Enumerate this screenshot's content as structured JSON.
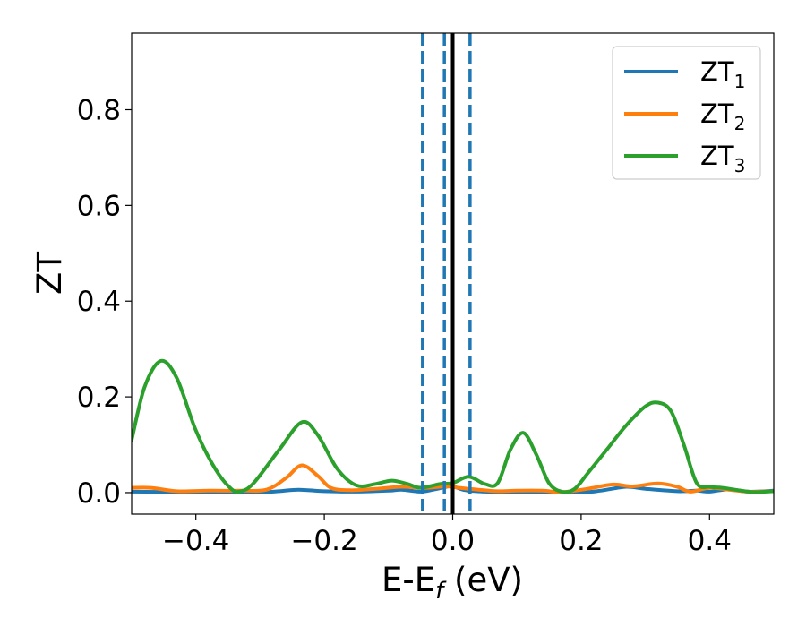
{
  "chart_data": {
    "type": "line",
    "xlabel": "E-E",
    "xlabel_sub": "f",
    "xlabel_unit": " (eV)",
    "ylabel": "ZT",
    "xlim": [
      -0.5,
      0.5
    ],
    "ylim": [
      -0.045,
      0.96
    ],
    "xticks": [
      -0.4,
      -0.2,
      0.0,
      0.2,
      0.4
    ],
    "xtick_labels": [
      "−0.4",
      "−0.2",
      "0.0",
      "0.2",
      "0.4"
    ],
    "yticks": [
      0.0,
      0.2,
      0.4,
      0.6,
      0.8
    ],
    "ytick_labels": [
      "0.0",
      "0.2",
      "0.4",
      "0.6",
      "0.8"
    ],
    "grid": false,
    "legend_position": "top-right",
    "vlines": [
      {
        "x": -0.047,
        "style": "dashed",
        "color": "#1f77b4"
      },
      {
        "x": -0.013,
        "style": "dashed",
        "color": "#1f77b4"
      },
      {
        "x": 0.0,
        "style": "solid",
        "color": "#000000"
      },
      {
        "x": 0.027,
        "style": "dashed",
        "color": "#1f77b4"
      }
    ],
    "series": [
      {
        "name": "ZT",
        "name_sub": "1",
        "color": "#1f77b4",
        "points": [
          [
            -0.5,
            0.002
          ],
          [
            -0.4,
            0.001
          ],
          [
            -0.3,
            0.001
          ],
          [
            -0.27,
            0.003
          ],
          [
            -0.24,
            0.006
          ],
          [
            -0.2,
            0.003
          ],
          [
            -0.15,
            0.002
          ],
          [
            -0.1,
            0.004
          ],
          [
            -0.08,
            0.006
          ],
          [
            -0.05,
            0.002
          ],
          [
            -0.03,
            0.006
          ],
          [
            -0.01,
            0.012
          ],
          [
            0.0,
            0.013
          ],
          [
            0.02,
            0.005
          ],
          [
            0.05,
            0.002
          ],
          [
            0.1,
            0.001
          ],
          [
            0.2,
            0.001
          ],
          [
            0.23,
            0.004
          ],
          [
            0.27,
            0.012
          ],
          [
            0.3,
            0.008
          ],
          [
            0.35,
            0.003
          ],
          [
            0.38,
            0.004
          ],
          [
            0.4,
            0.002
          ],
          [
            0.43,
            0.007
          ],
          [
            0.46,
            0.002
          ],
          [
            0.5,
            0.004
          ]
        ]
      },
      {
        "name": "ZT",
        "name_sub": "2",
        "color": "#ff7f0e",
        "points": [
          [
            -0.5,
            0.01
          ],
          [
            -0.47,
            0.01
          ],
          [
            -0.43,
            0.003
          ],
          [
            -0.38,
            0.004
          ],
          [
            -0.33,
            0.004
          ],
          [
            -0.29,
            0.006
          ],
          [
            -0.26,
            0.03
          ],
          [
            -0.235,
            0.057
          ],
          [
            -0.21,
            0.035
          ],
          [
            -0.19,
            0.01
          ],
          [
            -0.16,
            0.005
          ],
          [
            -0.12,
            0.008
          ],
          [
            -0.08,
            0.012
          ],
          [
            -0.04,
            0.01
          ],
          [
            -0.01,
            0.013
          ],
          [
            0.01,
            0.01
          ],
          [
            0.04,
            0.006
          ],
          [
            0.07,
            0.003
          ],
          [
            0.1,
            0.004
          ],
          [
            0.14,
            0.004
          ],
          [
            0.17,
            0.001
          ],
          [
            0.21,
            0.008
          ],
          [
            0.25,
            0.017
          ],
          [
            0.28,
            0.013
          ],
          [
            0.32,
            0.019
          ],
          [
            0.35,
            0.012
          ],
          [
            0.37,
            0.002
          ],
          [
            0.4,
            0.01
          ],
          [
            0.43,
            0.006
          ],
          [
            0.46,
            0.002
          ],
          [
            0.5,
            0.003
          ]
        ]
      },
      {
        "name": "ZT",
        "name_sub": "3",
        "color": "#2ca02c",
        "points": [
          [
            -0.5,
            0.11
          ],
          [
            -0.48,
            0.22
          ],
          [
            -0.455,
            0.275
          ],
          [
            -0.43,
            0.24
          ],
          [
            -0.4,
            0.13
          ],
          [
            -0.37,
            0.05
          ],
          [
            -0.345,
            0.008
          ],
          [
            -0.33,
            0.003
          ],
          [
            -0.31,
            0.02
          ],
          [
            -0.27,
            0.09
          ],
          [
            -0.235,
            0.147
          ],
          [
            -0.21,
            0.12
          ],
          [
            -0.18,
            0.05
          ],
          [
            -0.15,
            0.015
          ],
          [
            -0.12,
            0.018
          ],
          [
            -0.095,
            0.025
          ],
          [
            -0.07,
            0.018
          ],
          [
            -0.05,
            0.01
          ],
          [
            -0.02,
            0.018
          ],
          [
            0.0,
            0.02
          ],
          [
            0.025,
            0.033
          ],
          [
            0.05,
            0.018
          ],
          [
            0.07,
            0.02
          ],
          [
            0.09,
            0.09
          ],
          [
            0.11,
            0.125
          ],
          [
            0.13,
            0.08
          ],
          [
            0.15,
            0.02
          ],
          [
            0.17,
            0.002
          ],
          [
            0.19,
            0.008
          ],
          [
            0.21,
            0.04
          ],
          [
            0.24,
            0.09
          ],
          [
            0.27,
            0.14
          ],
          [
            0.3,
            0.18
          ],
          [
            0.32,
            0.188
          ],
          [
            0.34,
            0.17
          ],
          [
            0.36,
            0.1
          ],
          [
            0.38,
            0.02
          ],
          [
            0.4,
            0.012
          ],
          [
            0.42,
            0.01
          ],
          [
            0.45,
            0.004
          ],
          [
            0.47,
            0.001
          ],
          [
            0.5,
            0.003
          ]
        ]
      }
    ]
  }
}
